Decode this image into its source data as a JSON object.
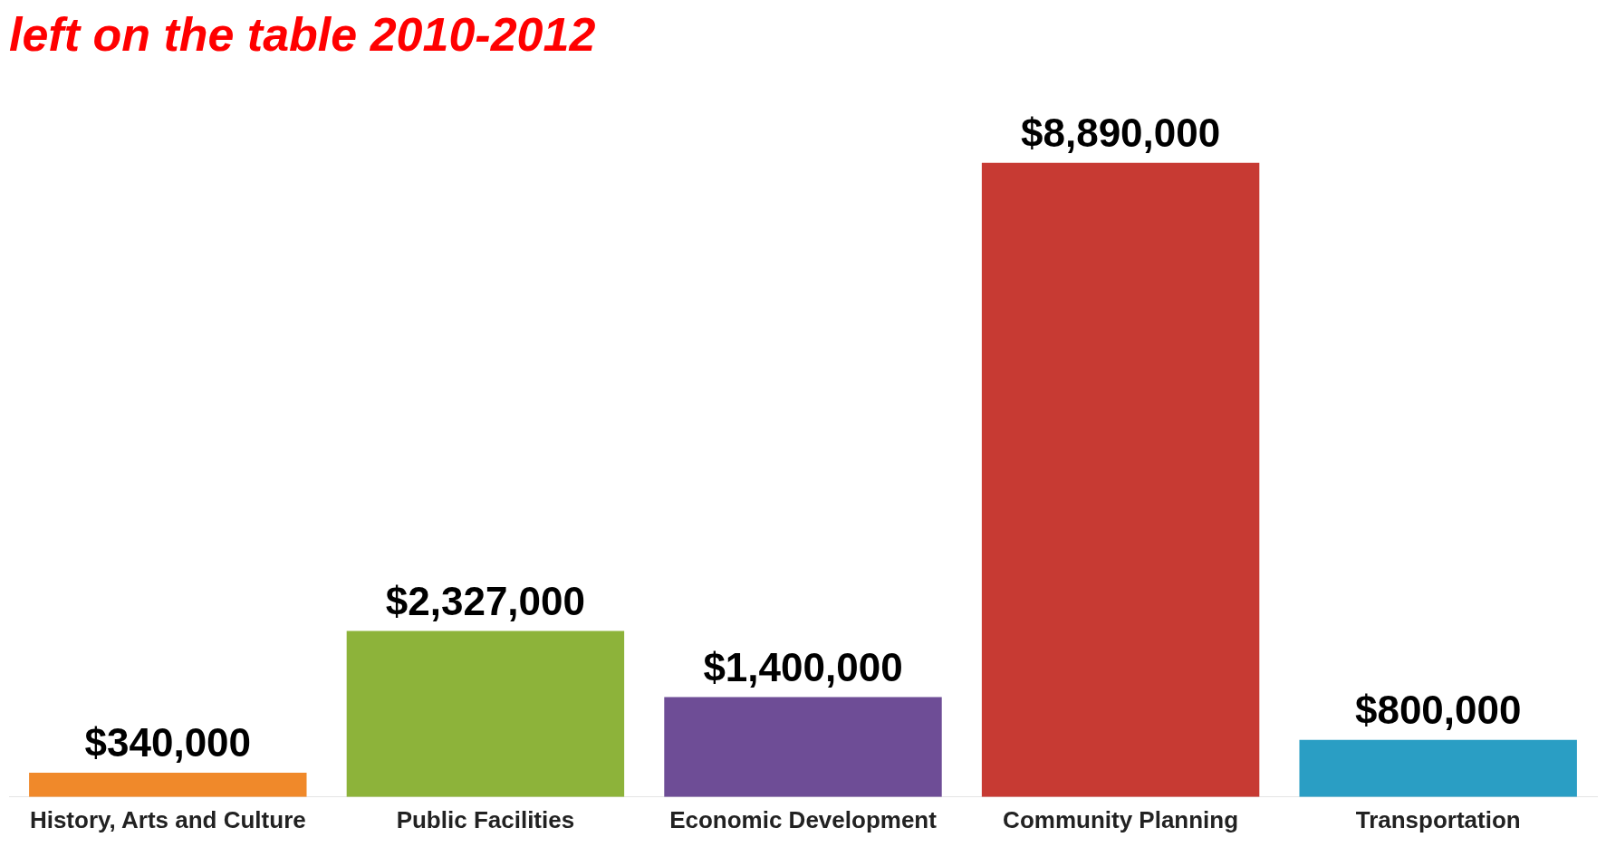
{
  "chart_data": {
    "type": "bar",
    "title": "left on the table 2010-2012",
    "categories": [
      "History, Arts and Culture",
      "Public Facilities",
      "Economic Development",
      "Community Planning",
      "Transportation"
    ],
    "values": [
      340000,
      2327000,
      1400000,
      8890000,
      800000
    ],
    "colors": [
      "#f0892a",
      "#8db33a",
      "#6e4d96",
      "#c73a33",
      "#2a9ec4"
    ],
    "value_labels": [
      "$340,000",
      "$2,327,000",
      "$1,400,000",
      "$8,890,000",
      "$800,000"
    ],
    "grid": false,
    "legend": false
  }
}
